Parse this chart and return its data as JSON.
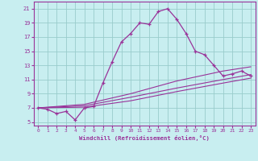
{
  "xlabel": "Windchill (Refroidissement éolien,°C)",
  "bg_color": "#c8eef0",
  "line_color": "#993399",
  "grid_color": "#99cccc",
  "x_ticks": [
    0,
    1,
    2,
    3,
    4,
    5,
    6,
    7,
    8,
    9,
    10,
    11,
    12,
    13,
    14,
    15,
    16,
    17,
    18,
    19,
    20,
    21,
    22,
    23
  ],
  "y_ticks": [
    5,
    7,
    9,
    11,
    13,
    15,
    17,
    19,
    21
  ],
  "xlim": [
    -0.5,
    23.5
  ],
  "ylim": [
    4.5,
    22.0
  ],
  "line1_x": [
    0,
    1,
    2,
    3,
    4,
    5,
    6,
    7,
    8,
    9,
    10,
    11,
    12,
    13,
    14,
    15,
    16,
    17,
    18,
    19,
    20,
    21,
    22,
    23
  ],
  "line1_y": [
    7.0,
    6.8,
    6.2,
    6.5,
    5.3,
    7.0,
    7.2,
    10.5,
    13.5,
    16.3,
    17.5,
    19.0,
    18.8,
    20.6,
    21.0,
    19.5,
    17.5,
    15.0,
    14.5,
    13.0,
    11.5,
    11.8,
    12.2,
    11.5
  ],
  "line2_x": [
    0,
    5,
    10,
    15,
    20,
    23
  ],
  "line2_y": [
    7.0,
    7.3,
    8.5,
    9.8,
    11.0,
    11.7
  ],
  "line3_x": [
    0,
    5,
    10,
    15,
    20,
    23
  ],
  "line3_y": [
    7.0,
    7.5,
    9.0,
    10.8,
    12.2,
    12.8
  ],
  "line4_x": [
    0,
    5,
    10,
    15,
    20,
    23
  ],
  "line4_y": [
    7.0,
    7.1,
    8.0,
    9.3,
    10.5,
    11.2
  ]
}
